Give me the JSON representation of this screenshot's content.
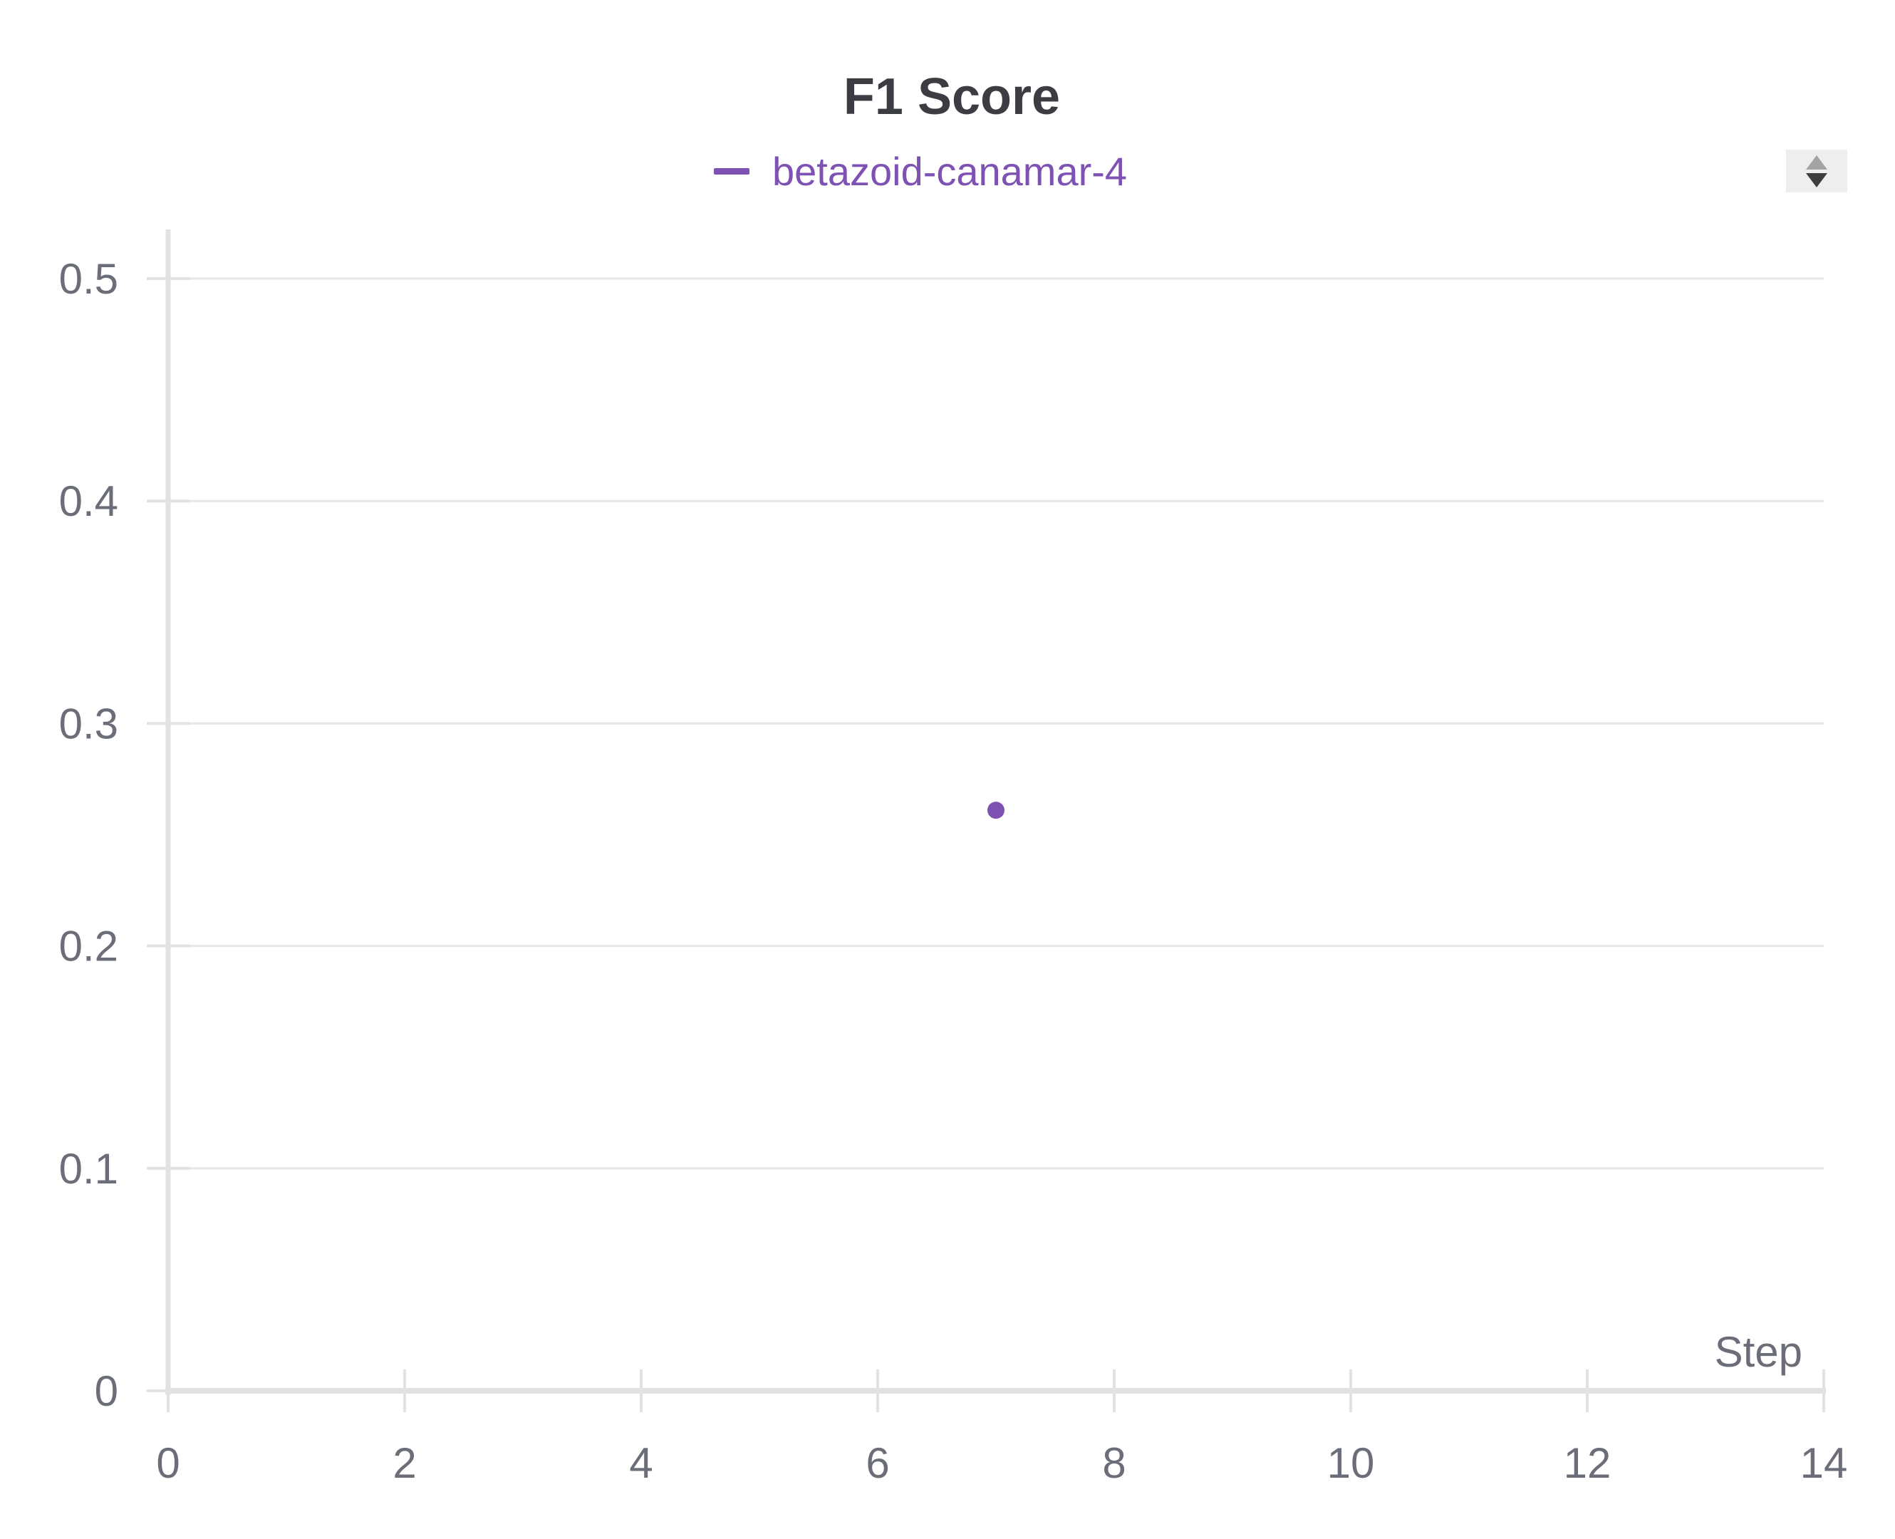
{
  "chart_data": {
    "type": "scatter",
    "title": "F1 Score",
    "xlabel": "Step",
    "ylabel": "",
    "xlim": [
      0,
      14
    ],
    "ylim": [
      0,
      0.5
    ],
    "xticks": [
      0,
      2,
      4,
      6,
      8,
      10,
      12,
      14
    ],
    "yticks": [
      0,
      0.1,
      0.2,
      0.3,
      0.4,
      0.5
    ],
    "grid": true,
    "legend_position": "top-center",
    "series": [
      {
        "name": "betazoid-canamar-4",
        "color": "#7e52b3",
        "x": [
          7
        ],
        "y": [
          0.261
        ]
      }
    ]
  },
  "colors": {
    "gridline": "#e6e6e6",
    "axis": "#e2e2e2",
    "tick_text": "#6b6e78",
    "title_text": "#3b3d42",
    "scroll_bg": "#eeeeee"
  },
  "legend_scroll": {
    "icon": "updown-arrows-icon"
  }
}
